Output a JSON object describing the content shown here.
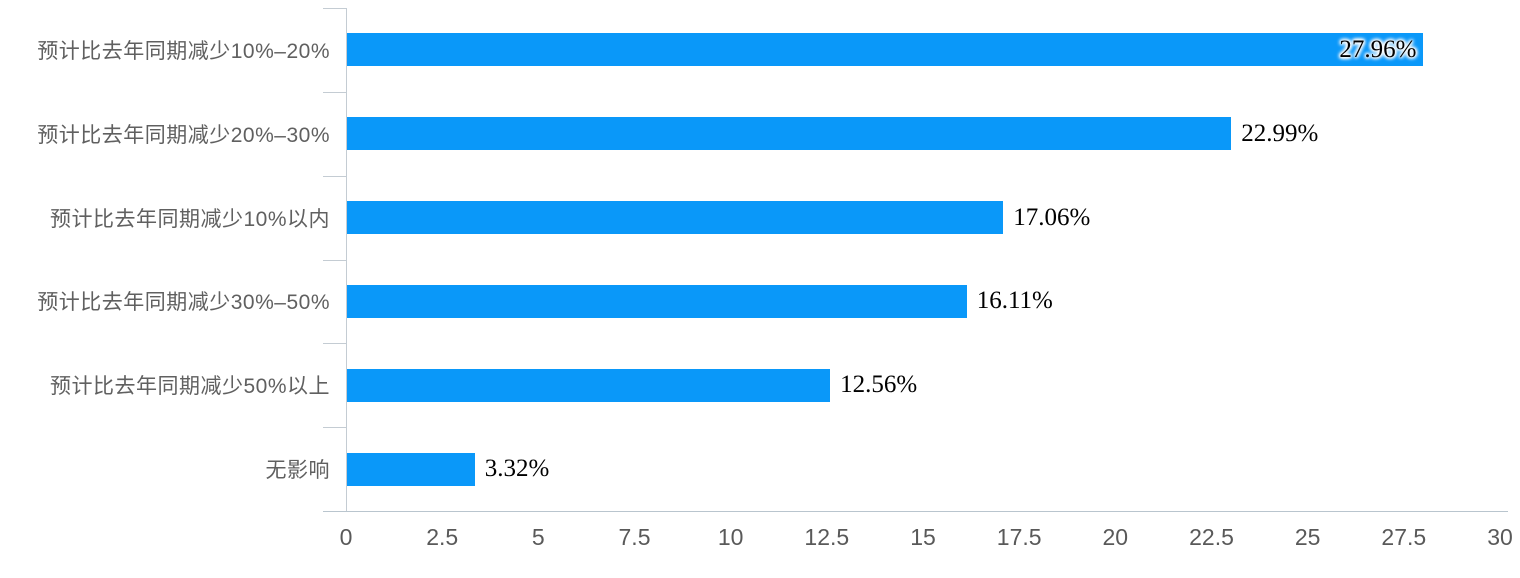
{
  "chart_data": {
    "type": "bar",
    "orientation": "horizontal",
    "title": "",
    "xlabel": "",
    "ylabel": "",
    "grid": false,
    "legend": null,
    "categories": [
      "预计比去年同期减少10%–20%",
      "预计比去年同期减少20%–30%",
      "预计比去年同期减少10%以内",
      "预计比去年同期减少30%–50%",
      "预计比去年同期减少50%以上",
      "无影响"
    ],
    "values": [
      27.96,
      22.99,
      17.06,
      16.11,
      12.56,
      3.32
    ],
    "value_labels": [
      "27.96%",
      "22.99%",
      "17.06%",
      "16.11%",
      "12.56%",
      "3.32%"
    ],
    "xlim": [
      0,
      30
    ],
    "x_ticks": [
      {
        "value": 0,
        "label": "0"
      },
      {
        "value": 2.5,
        "label": "2.5"
      },
      {
        "value": 5,
        "label": "5"
      },
      {
        "value": 7.5,
        "label": "7.5"
      },
      {
        "value": 10,
        "label": "10"
      },
      {
        "value": 12.5,
        "label": "12.5"
      },
      {
        "value": 15,
        "label": "15"
      },
      {
        "value": 17.5,
        "label": "17.5"
      },
      {
        "value": 20,
        "label": "20"
      },
      {
        "value": 22.5,
        "label": "22.5"
      },
      {
        "value": 25,
        "label": "25"
      },
      {
        "value": 27.5,
        "label": "27.5"
      },
      {
        "value": 30,
        "label": "30"
      }
    ],
    "colors": {
      "bar": "#0a98f9",
      "y_axis": "#c4ccd3",
      "x_axis": "#b9c5ce",
      "category_label": "#606060",
      "tick_label": "#595959",
      "value_label": "#000000",
      "background": "#ffffff"
    }
  }
}
